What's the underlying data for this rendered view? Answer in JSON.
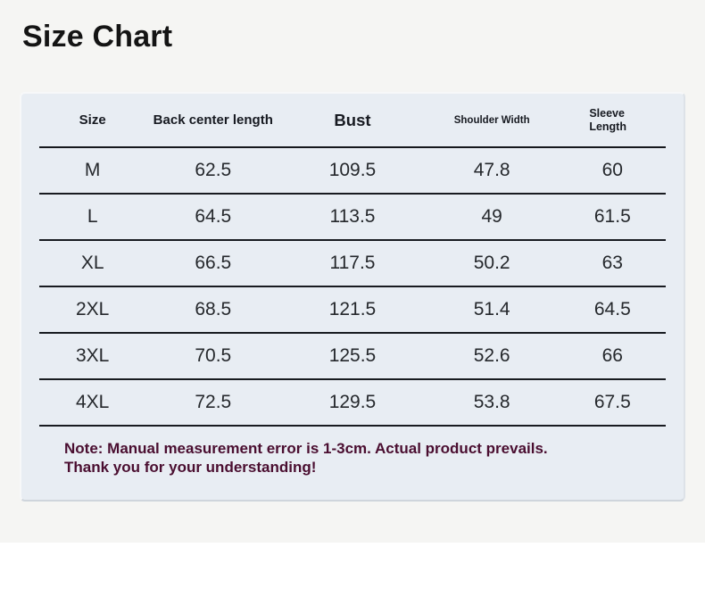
{
  "page": {
    "title": "Size Chart"
  },
  "chart_data": {
    "type": "table",
    "title": "Size Chart",
    "columns": [
      "Size",
      "Back center length",
      "Bust",
      "Shoulder Width",
      "Sleeve Length"
    ],
    "rows": [
      [
        "M",
        "62.5",
        "109.5",
        "47.8",
        "60"
      ],
      [
        "L",
        "64.5",
        "113.5",
        "49",
        "61.5"
      ],
      [
        "XL",
        "66.5",
        "117.5",
        "50.2",
        "63"
      ],
      [
        "2XL",
        "68.5",
        "121.5",
        "51.4",
        "64.5"
      ],
      [
        "3XL",
        "70.5",
        "125.5",
        "52.6",
        "66"
      ],
      [
        "4XL",
        "72.5",
        "129.5",
        "53.8",
        "67.5"
      ]
    ]
  },
  "note": {
    "line1": "Note: Manual measurement error is 1-3cm. Actual product prevails.",
    "line2": "Thank you for your understanding!"
  },
  "colors": {
    "page_background": "#f5f5f3",
    "panel_background": "#e8edf3",
    "rule_line": "#15171c",
    "header_text": "#171a21",
    "cell_text": "#25282c",
    "note_text": "#4a0e30"
  }
}
